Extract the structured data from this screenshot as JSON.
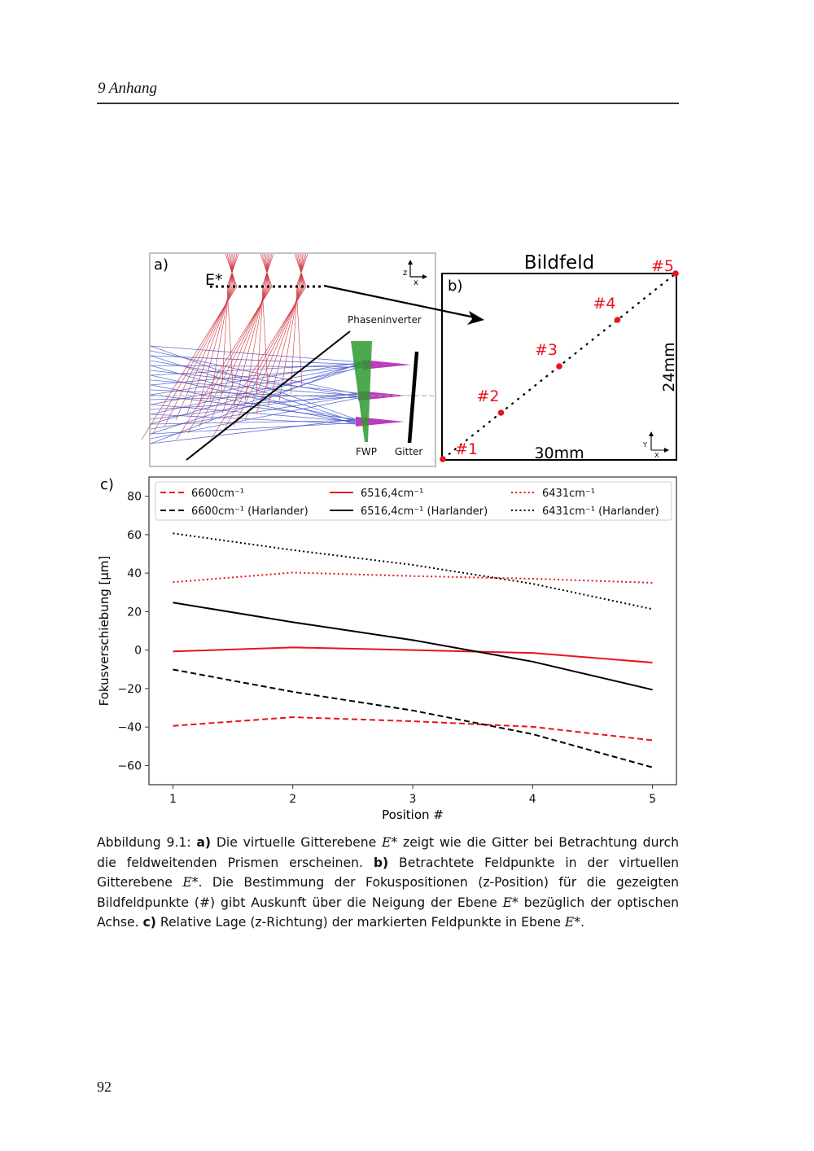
{
  "header": {
    "running_head": "9  Anhang"
  },
  "page_number": "92",
  "panel_a": {
    "label": "a)",
    "plane_label": "E*",
    "phase_inverter_label": "Phaseninverter",
    "fwp_label": "FWP",
    "grating_label": "Gitter",
    "axes_icon": {
      "vertical": "z",
      "horizontal": "x"
    }
  },
  "panel_b": {
    "label": "b)",
    "title": "Bildfeld",
    "width_label": "30mm",
    "height_label": "24mm",
    "axes_icon": {
      "vertical": "Y",
      "horizontal": "X"
    },
    "field_points": [
      "#1",
      "#2",
      "#3",
      "#4",
      "#5"
    ],
    "point_color": "#e8141b"
  },
  "caption": {
    "prefix": "Abbildung 9.1: ",
    "a_label": "a)",
    "a_text_1": " Die virtuelle Gitterebene ",
    "a_text_2": " zeigt wie die Gitter bei Betrachtung durch die feldweitenden Prismen erscheinen. ",
    "b_label": "b)",
    "b_text_1": " Betrachtete Feldpunkte in der virtuellen Gitterebene ",
    "b_text_2": ". Die Bestimmung der Fokuspositionen (z-Position) für die gezeigten Bildfeldpunkte (#) gibt Auskunft über die Neigung der Ebene ",
    "b_text_3": " bezüglich der optischen Achse. ",
    "c_label": "c)",
    "c_text_1": " Relative Lage (z-Richtung) der markierten Feldpunkte in Ebene ",
    "c_text_2": ".",
    "math_symbol": "E*"
  },
  "chart_data": {
    "type": "line",
    "panel_label": "c)",
    "title": "",
    "xlabel": "Position #",
    "ylabel": "Fokusverschiebung [μm]",
    "x": [
      1,
      2,
      3,
      4,
      5
    ],
    "xlim": [
      0.8,
      5.2
    ],
    "ylim": [
      -70,
      90
    ],
    "xticks": [
      1,
      2,
      3,
      4,
      5
    ],
    "yticks": [
      -60,
      -40,
      -20,
      0,
      20,
      40,
      60,
      80
    ],
    "ytick_labels": [
      "−60",
      "−40",
      "−20",
      "0",
      "20",
      "40",
      "60",
      "80"
    ],
    "grid": false,
    "legend_placement": "top",
    "legend_columns": 3,
    "series": [
      {
        "name": "6600cm⁻¹",
        "color": "#e8141b",
        "style": "dashed",
        "values": [
          -39.4,
          -34.9,
          -37.0,
          -39.9,
          -46.9
        ]
      },
      {
        "name": "6600cm⁻¹ (Harlander)",
        "color": "#000000",
        "style": "dashed",
        "values": [
          -10.1,
          -21.7,
          -31.4,
          -43.7,
          -61.0
        ]
      },
      {
        "name": "6516,4cm⁻¹",
        "color": "#e8141b",
        "style": "solid",
        "values": [
          -0.7,
          1.4,
          0.0,
          -1.5,
          -6.5
        ]
      },
      {
        "name": "6516,4cm⁻¹ (Harlander)",
        "color": "#000000",
        "style": "solid",
        "values": [
          24.7,
          14.5,
          5.2,
          -6.0,
          -20.6
        ]
      },
      {
        "name": "6431cm⁻¹",
        "color": "#e8141b",
        "style": "dotted",
        "values": [
          35.3,
          40.3,
          38.5,
          37.1,
          35.0
        ]
      },
      {
        "name": "6431cm⁻¹ (Harlander)",
        "color": "#000000",
        "style": "dotted",
        "values": [
          60.7,
          52.0,
          44.3,
          34.5,
          21.3
        ]
      }
    ]
  }
}
